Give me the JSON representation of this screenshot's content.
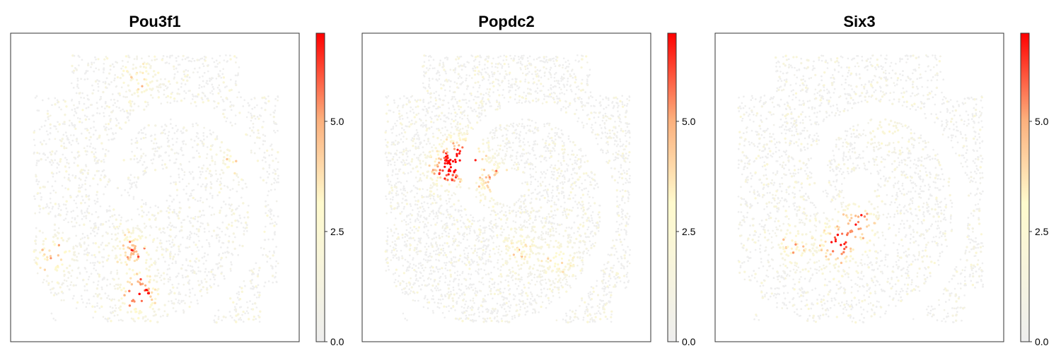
{
  "chart_data": [
    {
      "type": "scatter",
      "title": "Pou3f1",
      "colorbar": {
        "min": 0.0,
        "max": 7.0,
        "ticks": [
          0.0,
          2.5,
          5.0
        ],
        "tick_labels": [
          "0.0",
          "2.5",
          "5.0"
        ]
      },
      "colormap": [
        "#eeeeee",
        "#fffacd",
        "#fcaf7c",
        "#ff0000"
      ],
      "hotspots": [
        {
          "x": 0.44,
          "y": 0.87,
          "strength": 1.0
        },
        {
          "x": 0.42,
          "y": 0.72,
          "strength": 0.7
        },
        {
          "x": 0.12,
          "y": 0.74,
          "strength": 0.65
        },
        {
          "x": 0.45,
          "y": 0.13,
          "strength": 0.4
        },
        {
          "x": 0.8,
          "y": 0.4,
          "strength": 0.35
        }
      ]
    },
    {
      "type": "scatter",
      "title": "Popdc2",
      "colorbar": {
        "min": 0.0,
        "max": 7.0,
        "ticks": [
          0.0,
          2.5,
          5.0
        ],
        "tick_labels": [
          "0.0",
          "2.5",
          "5.0"
        ]
      },
      "colormap": [
        "#eeeeee",
        "#fffacd",
        "#fcaf7c",
        "#ff0000"
      ],
      "hotspots": [
        {
          "x": 0.28,
          "y": 0.43,
          "strength": 1.0
        },
        {
          "x": 0.35,
          "y": 0.38,
          "strength": 0.8
        },
        {
          "x": 0.45,
          "y": 0.48,
          "strength": 0.7
        },
        {
          "x": 0.55,
          "y": 0.72,
          "strength": 0.4
        },
        {
          "x": 0.7,
          "y": 0.75,
          "strength": 0.45
        }
      ]
    },
    {
      "type": "scatter",
      "title": "Six3",
      "colorbar": {
        "min": 0.0,
        "max": 7.0,
        "ticks": [
          0.0,
          2.5,
          5.0
        ],
        "tick_labels": [
          "0.0",
          "2.5",
          "5.0"
        ]
      },
      "colormap": [
        "#eeeeee",
        "#fffacd",
        "#fcaf7c",
        "#ff0000"
      ],
      "hotspots": [
        {
          "x": 0.42,
          "y": 0.7,
          "strength": 1.0
        },
        {
          "x": 0.5,
          "y": 0.62,
          "strength": 0.75
        },
        {
          "x": 0.25,
          "y": 0.7,
          "strength": 0.5
        },
        {
          "x": 0.6,
          "y": 0.3,
          "strength": 0.3
        }
      ]
    }
  ]
}
